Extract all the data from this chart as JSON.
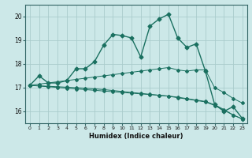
{
  "title": "",
  "xlabel": "Humidex (Indice chaleur)",
  "background_color": "#cce8e8",
  "grid_color": "#aacccc",
  "line_color": "#1a7060",
  "xlim": [
    -0.5,
    23.5
  ],
  "ylim": [
    15.5,
    20.5
  ],
  "yticks": [
    16,
    17,
    18,
    19,
    20
  ],
  "xticks": [
    0,
    1,
    2,
    3,
    4,
    5,
    6,
    7,
    8,
    9,
    10,
    11,
    12,
    13,
    14,
    15,
    16,
    17,
    18,
    19,
    20,
    21,
    22,
    23
  ],
  "series": [
    {
      "x": [
        0,
        1,
        2,
        3,
        4,
        5,
        6,
        7,
        8,
        9,
        10,
        11,
        12,
        13,
        14,
        15,
        16,
        17,
        18,
        19,
        20,
        21,
        22,
        23
      ],
      "y": [
        17.1,
        17.5,
        17.2,
        17.2,
        17.3,
        17.8,
        17.8,
        18.1,
        18.8,
        19.25,
        19.2,
        19.1,
        18.3,
        19.6,
        19.9,
        20.1,
        19.1,
        18.7,
        18.85,
        17.7,
        16.3,
        16.0,
        16.2,
        15.7
      ]
    },
    {
      "x": [
        0,
        1,
        2,
        3,
        4,
        5,
        6,
        7,
        8,
        9,
        10,
        11,
        12,
        13,
        14,
        15,
        16,
        17,
        18,
        19,
        20,
        21,
        22,
        23
      ],
      "y": [
        17.1,
        17.15,
        17.2,
        17.25,
        17.3,
        17.35,
        17.4,
        17.45,
        17.5,
        17.55,
        17.6,
        17.65,
        17.7,
        17.75,
        17.8,
        17.85,
        17.75,
        17.7,
        17.75,
        17.75,
        17.0,
        16.8,
        16.55,
        16.35
      ]
    },
    {
      "x": [
        0,
        1,
        2,
        3,
        4,
        5,
        6,
        7,
        8,
        9,
        10,
        11,
        12,
        13,
        14,
        15,
        16,
        17,
        18,
        19,
        20,
        21,
        22,
        23
      ],
      "y": [
        17.1,
        17.08,
        17.06,
        17.04,
        17.02,
        17.0,
        16.98,
        16.95,
        16.92,
        16.88,
        16.84,
        16.8,
        16.76,
        16.72,
        16.68,
        16.64,
        16.58,
        16.52,
        16.46,
        16.4,
        16.25,
        16.05,
        15.85,
        15.68
      ]
    },
    {
      "x": [
        0,
        1,
        2,
        3,
        4,
        5,
        6,
        7,
        8,
        9,
        10,
        11,
        12,
        13,
        14,
        15,
        16,
        17,
        18,
        19,
        20,
        21,
        22,
        23
      ],
      "y": [
        17.1,
        17.07,
        17.04,
        17.01,
        16.98,
        16.95,
        16.92,
        16.89,
        16.86,
        16.83,
        16.8,
        16.77,
        16.74,
        16.71,
        16.68,
        16.65,
        16.6,
        16.54,
        16.48,
        16.42,
        16.28,
        16.08,
        15.85,
        15.68
      ]
    }
  ]
}
